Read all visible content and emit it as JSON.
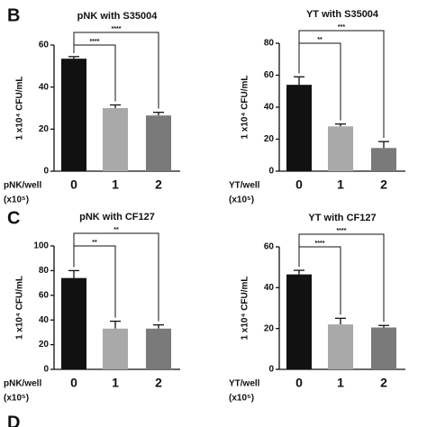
{
  "chart_data": [
    {
      "type": "bar",
      "panel": "B",
      "title": "pNK with S35004",
      "ylabel": "1 x10⁴ CFU/mL",
      "xlabel": [
        "pNK/well",
        "(x10⁵)"
      ],
      "categories": [
        "0",
        "1",
        "2"
      ],
      "values": [
        53.5,
        30,
        26.5
      ],
      "errors": [
        1,
        1.5,
        1.5
      ],
      "colors": [
        "#111111",
        "#a9a9a9",
        "#7a7a7a"
      ],
      "ylim": [
        0,
        60
      ],
      "yticks": [
        0,
        20,
        40,
        60
      ],
      "significance": [
        "****",
        "****"
      ]
    },
    {
      "type": "bar",
      "title": "YT with S35004",
      "ylabel": "1 x10⁴ CFU/mL",
      "xlabel": [
        "YT/well",
        "(x10⁵)"
      ],
      "categories": [
        "0",
        "1",
        "2"
      ],
      "values": [
        54,
        28,
        14.5
      ],
      "errors": [
        5,
        1.5,
        4
      ],
      "colors": [
        "#111111",
        "#a9a9a9",
        "#7a7a7a"
      ],
      "ylim": [
        0,
        80
      ],
      "yticks": [
        0,
        20,
        40,
        60,
        80
      ],
      "significance": [
        "**",
        "***"
      ]
    },
    {
      "type": "bar",
      "panel": "C",
      "title": "pNK with CF127",
      "ylabel": "1 x10⁴ CFU/mL",
      "xlabel": [
        "pNK/well",
        "(x10⁵)"
      ],
      "categories": [
        "0",
        "1",
        "2"
      ],
      "values": [
        74,
        33,
        33
      ],
      "errors": [
        6,
        6,
        3
      ],
      "colors": [
        "#111111",
        "#a9a9a9",
        "#7a7a7a"
      ],
      "ylim": [
        0,
        100
      ],
      "yticks": [
        0,
        20,
        40,
        60,
        80,
        100
      ],
      "significance": [
        "**",
        "**"
      ]
    },
    {
      "type": "bar",
      "title": "YT with CF127",
      "ylabel": "1 x10⁴ CFU/mL",
      "xlabel": [
        "YT/well",
        "(x10⁵)"
      ],
      "categories": [
        "0",
        "1",
        "2"
      ],
      "values": [
        46.5,
        22,
        20.5
      ],
      "errors": [
        2,
        3,
        1
      ],
      "colors": [
        "#111111",
        "#a9a9a9",
        "#7a7a7a"
      ],
      "ylim": [
        0,
        60
      ],
      "yticks": [
        0,
        20,
        40,
        60
      ],
      "significance": [
        "****",
        "****"
      ]
    },
    {
      "panel": "D"
    }
  ]
}
